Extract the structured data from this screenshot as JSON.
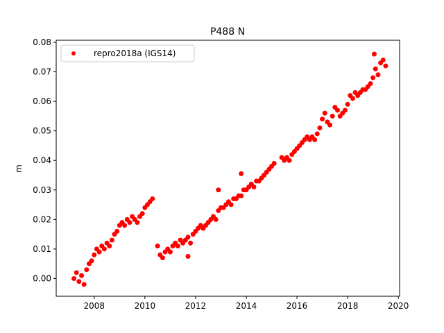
{
  "chart_data": {
    "type": "scatter",
    "title": "P488 N",
    "y_label": "m",
    "x": [
      2007.2,
      2007.3,
      2007.4,
      2007.5,
      2007.6,
      2007.7,
      2007.8,
      2007.9,
      2008.0,
      2008.1,
      2008.2,
      2008.3,
      2008.4,
      2008.5,
      2008.6,
      2008.7,
      2008.8,
      2008.9,
      2009.0,
      2009.1,
      2009.2,
      2009.3,
      2009.4,
      2009.5,
      2009.6,
      2009.7,
      2009.8,
      2009.9,
      2010.0,
      2010.1,
      2010.2,
      2010.3,
      2010.5,
      2010.6,
      2010.7,
      2010.8,
      2010.9,
      2011.0,
      2011.1,
      2011.2,
      2011.3,
      2011.4,
      2011.5,
      2011.6,
      2011.7,
      2011.8,
      2011.9,
      2012.0,
      2012.1,
      2012.2,
      2012.3,
      2012.4,
      2012.5,
      2012.6,
      2012.7,
      2012.8,
      2012.9,
      2013.0,
      2013.1,
      2013.2,
      2013.3,
      2013.4,
      2013.5,
      2013.6,
      2013.7,
      2013.8,
      2013.9,
      2014.0,
      2014.1,
      2014.2,
      2014.3,
      2014.4,
      2014.5,
      2014.6,
      2014.7,
      2014.8,
      2014.9,
      2015.0,
      2015.1,
      2012.9,
      2013.8,
      2011.7,
      2015.4,
      2015.5,
      2015.6,
      2015.7,
      2015.8,
      2015.9,
      2016.0,
      2016.1,
      2016.2,
      2016.3,
      2016.4,
      2016.5,
      2016.6,
      2016.7,
      2016.8,
      2016.9,
      2017.0,
      2017.1,
      2017.2,
      2017.3,
      2017.4,
      2017.5,
      2017.6,
      2017.7,
      2017.8,
      2017.9,
      2018.0,
      2018.1,
      2018.2,
      2018.3,
      2018.4,
      2018.5,
      2018.6,
      2018.7,
      2018.8,
      2018.9,
      2019.0,
      2019.1,
      2019.2,
      2019.3,
      2019.4,
      2019.5,
      2019.05
    ],
    "series": [
      {
        "name": "repro2018a (IGS14)",
        "color": "#ff0000",
        "values": [
          0.0,
          0.002,
          -0.001,
          0.001,
          -0.002,
          0.003,
          0.005,
          0.006,
          0.008,
          0.01,
          0.009,
          0.011,
          0.01,
          0.012,
          0.011,
          0.013,
          0.015,
          0.016,
          0.018,
          0.019,
          0.018,
          0.02,
          0.019,
          0.021,
          0.02,
          0.019,
          0.021,
          0.022,
          0.024,
          0.025,
          0.026,
          0.027,
          0.011,
          0.008,
          0.007,
          0.009,
          0.01,
          0.009,
          0.011,
          0.012,
          0.011,
          0.013,
          0.012,
          0.013,
          0.014,
          0.012,
          0.015,
          0.016,
          0.017,
          0.018,
          0.017,
          0.018,
          0.019,
          0.02,
          0.021,
          0.02,
          0.023,
          0.024,
          0.024,
          0.025,
          0.026,
          0.025,
          0.027,
          0.027,
          0.028,
          0.028,
          0.03,
          0.03,
          0.031,
          0.032,
          0.031,
          0.033,
          0.033,
          0.034,
          0.035,
          0.036,
          0.037,
          0.038,
          0.039,
          0.03,
          0.0355,
          0.0075,
          0.041,
          0.04,
          0.041,
          0.04,
          0.042,
          0.043,
          0.044,
          0.045,
          0.046,
          0.047,
          0.048,
          0.047,
          0.048,
          0.047,
          0.049,
          0.051,
          0.054,
          0.056,
          0.053,
          0.052,
          0.055,
          0.058,
          0.057,
          0.055,
          0.056,
          0.057,
          0.059,
          0.062,
          0.061,
          0.063,
          0.062,
          0.063,
          0.064,
          0.064,
          0.065,
          0.066,
          0.068,
          0.071,
          0.069,
          0.073,
          0.074,
          0.072,
          0.076
        ]
      }
    ],
    "xlim": [
      2006.5,
      2020.05
    ],
    "xticks": [
      2008,
      2010,
      2012,
      2014,
      2016,
      2018,
      2020
    ],
    "ylim": [
      -0.006,
      0.0807
    ],
    "yticks": [
      {
        "value": 0,
        "label": "0.00"
      },
      {
        "value": 0.01,
        "label": "0.01"
      },
      {
        "value": 0.02,
        "label": "0.02"
      },
      {
        "value": 0.03,
        "label": "0.03"
      },
      {
        "value": 0.04,
        "label": "0.04"
      },
      {
        "value": 0.05,
        "label": "0.05"
      },
      {
        "value": 0.06,
        "label": "0.06"
      },
      {
        "value": 0.07,
        "label": "0.07"
      },
      {
        "value": 0.08,
        "label": "0.08"
      }
    ],
    "legend": "upper left"
  }
}
